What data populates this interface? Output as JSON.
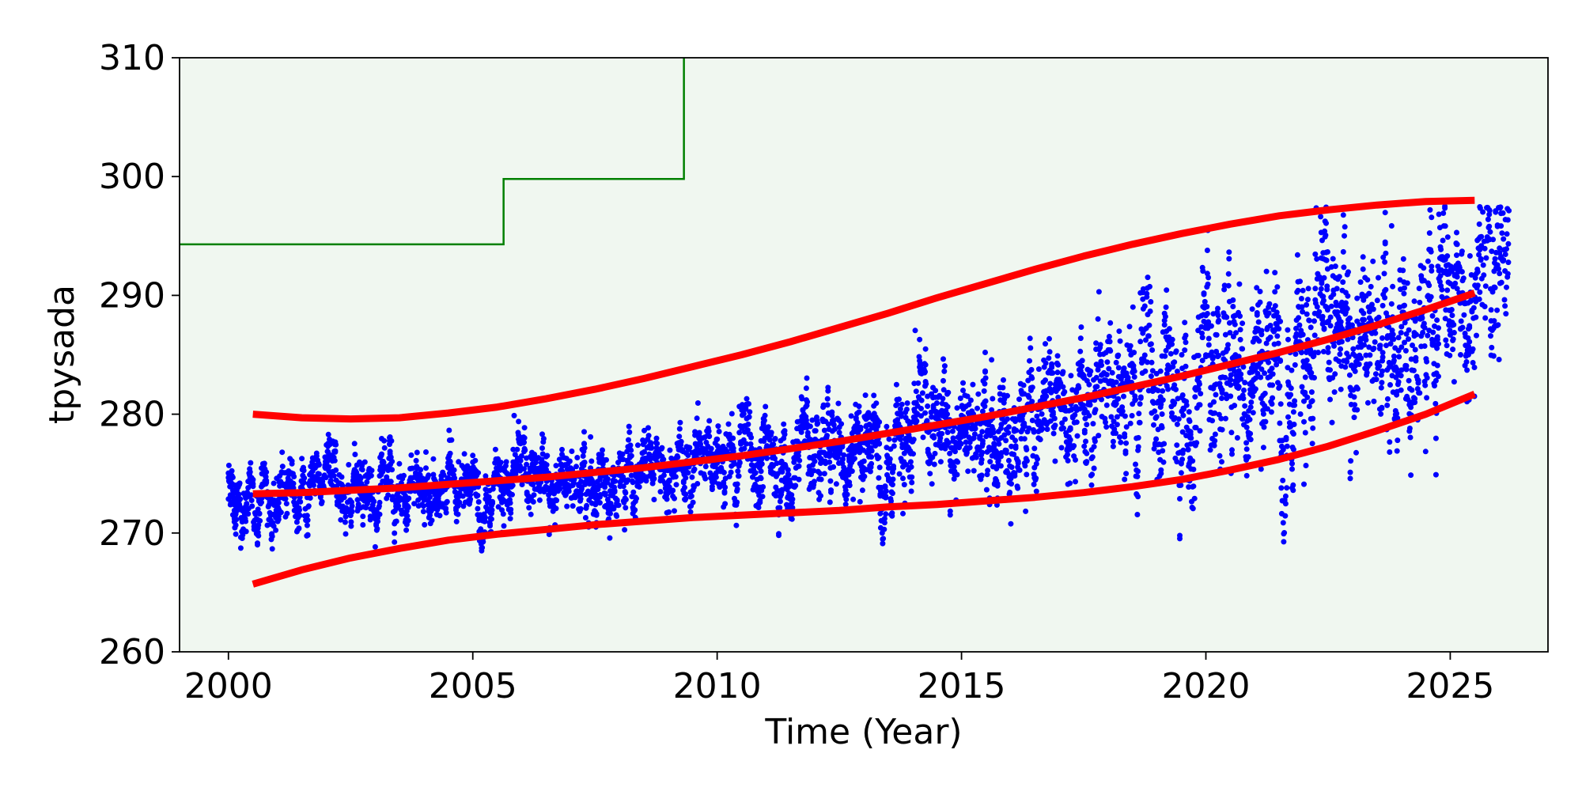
{
  "chart_data": {
    "type": "scatter",
    "title": "",
    "xlabel": "Time (Year)",
    "ylabel": "tpysada",
    "xlim": [
      1999.0,
      2027.0
    ],
    "ylim": [
      260,
      310
    ],
    "x_ticks": [
      2000,
      2005,
      2010,
      2015,
      2020,
      2025
    ],
    "y_ticks": [
      260,
      270,
      280,
      290,
      300,
      310
    ],
    "grid": false,
    "legend": "none",
    "background_color": "#f0f7f0",
    "threshold_step": {
      "color": "#008000",
      "points": [
        [
          1999.0,
          294.3
        ],
        [
          2005.63,
          294.3
        ],
        [
          2005.63,
          299.8
        ],
        [
          2009.32,
          299.8
        ],
        [
          2009.32,
          310
        ]
      ]
    },
    "scatter": {
      "color": "#0000ff",
      "x_range": [
        2000.0,
        2026.2
      ],
      "center_curve": [
        [
          2000.0,
          273.2
        ],
        [
          2003,
          273.8
        ],
        [
          2006,
          274.5
        ],
        [
          2009,
          275.7
        ],
        [
          2012,
          277.3
        ],
        [
          2015,
          279.2
        ],
        [
          2018,
          281.7
        ],
        [
          2021,
          285.0
        ],
        [
          2024,
          288.5
        ],
        [
          2026.2,
          291.5
        ]
      ],
      "spread_curve": [
        [
          2000.0,
          3.5
        ],
        [
          2005,
          3.5
        ],
        [
          2010,
          4.5
        ],
        [
          2015,
          6.0
        ],
        [
          2018,
          8.0
        ],
        [
          2020,
          10.0
        ],
        [
          2023,
          10.0
        ],
        [
          2026.2,
          10.0
        ]
      ],
      "clip_max": 297.5
    },
    "bands": [
      {
        "name": "upper",
        "color": "#ff0000",
        "points": [
          [
            2000.5,
            280.0
          ],
          [
            2001.5,
            279.7
          ],
          [
            2002.5,
            279.6
          ],
          [
            2003.5,
            279.7
          ],
          [
            2004.5,
            280.1
          ],
          [
            2005.5,
            280.6
          ],
          [
            2006.5,
            281.3
          ],
          [
            2007.5,
            282.1
          ],
          [
            2008.5,
            283.0
          ],
          [
            2009.5,
            284.0
          ],
          [
            2010.5,
            285.0
          ],
          [
            2011.5,
            286.1
          ],
          [
            2012.5,
            287.3
          ],
          [
            2013.5,
            288.5
          ],
          [
            2014.5,
            289.8
          ],
          [
            2015.5,
            291.0
          ],
          [
            2016.5,
            292.2
          ],
          [
            2017.5,
            293.3
          ],
          [
            2018.5,
            294.3
          ],
          [
            2019.5,
            295.2
          ],
          [
            2020.5,
            296.0
          ],
          [
            2021.5,
            296.7
          ],
          [
            2022.5,
            297.2
          ],
          [
            2023.5,
            297.6
          ],
          [
            2024.5,
            297.9
          ],
          [
            2025.5,
            298.0
          ]
        ]
      },
      {
        "name": "center",
        "color": "#ff0000",
        "points": [
          [
            2000.5,
            273.3
          ],
          [
            2001.5,
            273.4
          ],
          [
            2002.5,
            273.6
          ],
          [
            2003.5,
            273.8
          ],
          [
            2004.5,
            274.1
          ],
          [
            2005.5,
            274.4
          ],
          [
            2006.5,
            274.7
          ],
          [
            2007.5,
            275.1
          ],
          [
            2008.5,
            275.5
          ],
          [
            2009.5,
            276.0
          ],
          [
            2010.5,
            276.5
          ],
          [
            2011.5,
            277.1
          ],
          [
            2012.5,
            277.7
          ],
          [
            2013.5,
            278.4
          ],
          [
            2014.5,
            279.1
          ],
          [
            2015.5,
            279.8
          ],
          [
            2016.5,
            280.6
          ],
          [
            2017.5,
            281.4
          ],
          [
            2018.5,
            282.3
          ],
          [
            2019.5,
            283.2
          ],
          [
            2020.5,
            284.2
          ],
          [
            2021.5,
            285.2
          ],
          [
            2022.5,
            286.3
          ],
          [
            2023.5,
            287.5
          ],
          [
            2024.5,
            288.8
          ],
          [
            2025.5,
            290.2
          ]
        ]
      },
      {
        "name": "lower",
        "color": "#ff0000",
        "points": [
          [
            2000.5,
            265.7
          ],
          [
            2001.5,
            266.9
          ],
          [
            2002.5,
            267.9
          ],
          [
            2003.5,
            268.7
          ],
          [
            2004.5,
            269.4
          ],
          [
            2005.5,
            269.9
          ],
          [
            2006.5,
            270.3
          ],
          [
            2007.5,
            270.7
          ],
          [
            2008.5,
            271.0
          ],
          [
            2009.5,
            271.3
          ],
          [
            2010.5,
            271.5
          ],
          [
            2011.5,
            271.7
          ],
          [
            2012.5,
            271.9
          ],
          [
            2013.5,
            272.2
          ],
          [
            2014.5,
            272.4
          ],
          [
            2015.5,
            272.7
          ],
          [
            2016.5,
            273.0
          ],
          [
            2017.5,
            273.4
          ],
          [
            2018.5,
            273.9
          ],
          [
            2019.5,
            274.5
          ],
          [
            2020.5,
            275.3
          ],
          [
            2021.5,
            276.2
          ],
          [
            2022.5,
            277.3
          ],
          [
            2023.5,
            278.6
          ],
          [
            2024.5,
            280.0
          ],
          [
            2025.5,
            281.7
          ]
        ]
      }
    ]
  }
}
